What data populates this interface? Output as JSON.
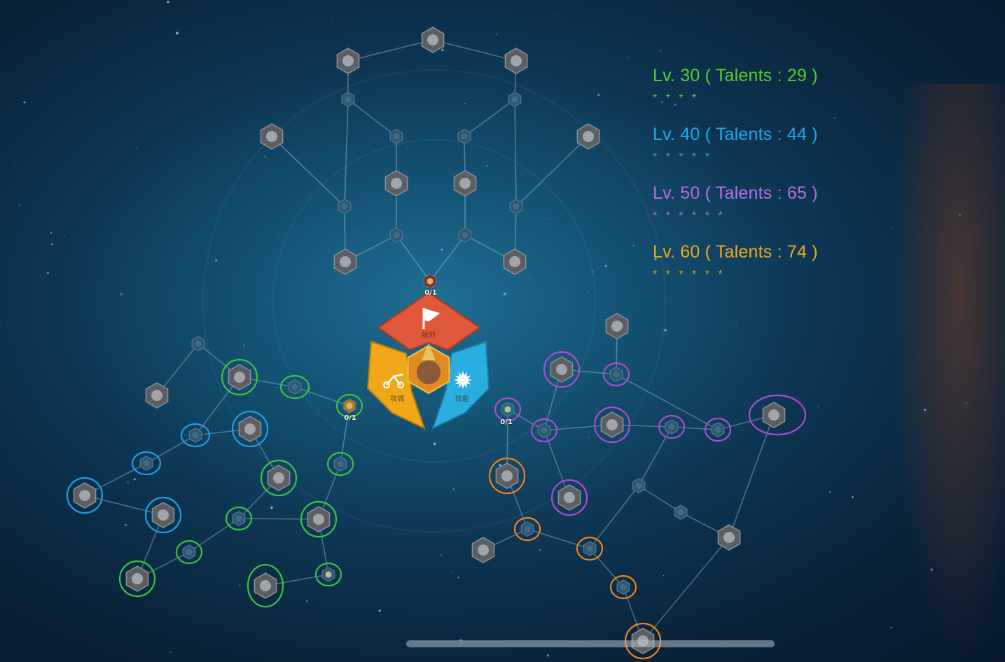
{
  "legend": [
    {
      "label": "Lv. 30 ( Talents : 29 )",
      "stars": "* * * *",
      "color": "#4fd12a"
    },
    {
      "label": "Lv. 40 ( Talents : 44 )",
      "stars": "* * * * *",
      "color": "#1ea9ea"
    },
    {
      "label": "Lv. 50 ( Talents : 65 )",
      "stars": "* * * * * *",
      "color": "#bd6ae6"
    },
    {
      "label": "Lv. 60 ( Talents : 74 )",
      "stars": "* * * * * *",
      "color": "#f0a81a"
    }
  ],
  "hub": {
    "leadership": {
      "label": "统帅",
      "color": "#e0583a",
      "icon": "flag-icon"
    },
    "siege": {
      "label": "攻城",
      "color": "#f0a818",
      "icon": "catapult-icon"
    },
    "skill": {
      "label": "技能",
      "color": "#2aaee0",
      "icon": "burst-icon"
    },
    "portrait": "commander-portrait"
  },
  "counters": {
    "leadership": "0/1",
    "siege": "0/1",
    "skill": "0/1"
  },
  "ring_colors": {
    "green": "#3cc43c",
    "blue": "#1e9fe8",
    "purple": "#b04ad0",
    "orange": "#f0821e"
  }
}
